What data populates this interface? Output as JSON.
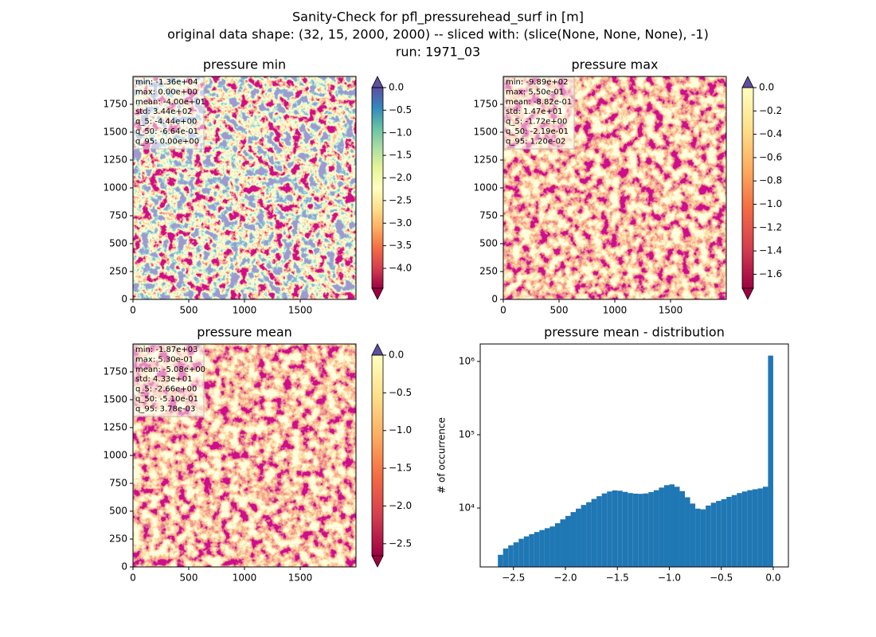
{
  "figure": {
    "title_lines": [
      "Sanity-Check for pfl_pressurehead_surf in [m]",
      "original data shape: (32, 15, 2000, 2000) -- sliced with: (slice(None, None, None), -1)",
      "run: 1971_03"
    ]
  },
  "chart_data": [
    {
      "type": "heatmap",
      "title": "pressure min",
      "xlim": [
        0,
        2000
      ],
      "ylim": [
        0,
        2000
      ],
      "xticks": [
        0,
        500,
        1000,
        1500
      ],
      "yticks": [
        0,
        250,
        500,
        750,
        1000,
        1250,
        1500,
        1750
      ],
      "stats": [
        "min: -1.36e+04",
        "max: 0.00e+00",
        "mean: -4.00e+01",
        "std: 3.44e+02",
        "q_5: -4.44e+00",
        "q_50: -6.64e-01",
        "q_95: 0.00e+00"
      ],
      "colorbar": {
        "ylim": [
          -4.44,
          0.0
        ],
        "extend": "both",
        "over_color": "#5e4fa2",
        "under_color": "#9e0142",
        "colors": [
          "#9e0142",
          "#d53e4f",
          "#f46d43",
          "#fdae61",
          "#fee08b",
          "#ffffbf",
          "#e6f598",
          "#abdda4",
          "#66c2a5",
          "#3288bd",
          "#5e4fa2"
        ],
        "yticks": [
          {
            "value": 0.0,
            "label": "0.0"
          },
          {
            "value": -0.5,
            "label": "−0.5"
          },
          {
            "value": -1.0,
            "label": "−1.0"
          },
          {
            "value": -1.5,
            "label": "−1.5"
          },
          {
            "value": -2.0,
            "label": "−2.0"
          },
          {
            "value": -2.5,
            "label": "−2.5"
          },
          {
            "value": -3.0,
            "label": "−3.0"
          },
          {
            "value": -3.5,
            "label": "−3.5"
          },
          {
            "value": -4.0,
            "label": "−4.0"
          }
        ]
      }
    },
    {
      "type": "heatmap",
      "title": "pressure max",
      "xlim": [
        0,
        2000
      ],
      "ylim": [
        0,
        2000
      ],
      "xticks": [
        0,
        500,
        1000,
        1500
      ],
      "yticks": [
        0,
        250,
        500,
        750,
        1000,
        1250,
        1500,
        1750
      ],
      "stats": [
        "min: -9.89e+02",
        "max: 5.50e-01",
        "mean: -8.82e-01",
        "std: 1.47e+01",
        "q_5: -1.72e+00",
        "q_50: -2.19e-01",
        "q_95: 1.20e-02"
      ],
      "colorbar": {
        "ylim": [
          -1.72,
          0.0
        ],
        "extend": "both",
        "over_color": "#5e4fa2",
        "under_color": "#9e0142",
        "colors": [
          "#9e0142",
          "#d53e4f",
          "#f46d43",
          "#fdae61",
          "#fee08b",
          "#ffffbf"
        ],
        "yticks": [
          {
            "value": 0.0,
            "label": "0.0"
          },
          {
            "value": -0.2,
            "label": "−0.2"
          },
          {
            "value": -0.4,
            "label": "−0.4"
          },
          {
            "value": -0.6,
            "label": "−0.6"
          },
          {
            "value": -0.8,
            "label": "−0.8"
          },
          {
            "value": -1.0,
            "label": "−1.0"
          },
          {
            "value": -1.2,
            "label": "−1.2"
          },
          {
            "value": -1.4,
            "label": "−1.4"
          },
          {
            "value": -1.6,
            "label": "−1.6"
          }
        ]
      }
    },
    {
      "type": "heatmap",
      "title": "pressure mean",
      "xlim": [
        0,
        2000
      ],
      "ylim": [
        0,
        2000
      ],
      "xticks": [
        0,
        500,
        1000,
        1500
      ],
      "yticks": [
        0,
        250,
        500,
        750,
        1000,
        1250,
        1500,
        1750
      ],
      "stats": [
        "min: -1.87e+03",
        "max: 5.30e-01",
        "mean: -5.08e+00",
        "std: 4.33e+01",
        "q_5: -2.66e+00",
        "q_50: -5.10e-01",
        "q_95: 3.78e-03"
      ],
      "colorbar": {
        "ylim": [
          -2.66,
          0.0
        ],
        "extend": "both",
        "over_color": "#5e4fa2",
        "under_color": "#9e0142",
        "colors": [
          "#9e0142",
          "#d53e4f",
          "#f46d43",
          "#fdae61",
          "#fee08b",
          "#ffffbf"
        ],
        "yticks": [
          {
            "value": 0.0,
            "label": "0.0"
          },
          {
            "value": -0.5,
            "label": "−0.5"
          },
          {
            "value": -1.0,
            "label": "−1.0"
          },
          {
            "value": -1.5,
            "label": "−1.5"
          },
          {
            "value": -2.0,
            "label": "−2.0"
          },
          {
            "value": -2.5,
            "label": "−2.5"
          }
        ]
      }
    },
    {
      "type": "histogram",
      "title": "pressure mean - distribution",
      "y_label": "# of occurrence",
      "color": "#1f77b4",
      "log_y": true,
      "xlim": [
        -2.82,
        0.146
      ],
      "ylim": [
        1570,
        1730000
      ],
      "xticks": [
        {
          "value": -2.5,
          "label": "−2.5"
        },
        {
          "value": -2.0,
          "label": "−2.0"
        },
        {
          "value": -1.5,
          "label": "−1.5"
        },
        {
          "value": -1.0,
          "label": "−1.0"
        },
        {
          "value": -0.5,
          "label": "−0.5"
        },
        {
          "value": 0.0,
          "label": "0.0"
        }
      ],
      "yticks": [
        {
          "value": 10000,
          "label": "10⁴"
        },
        {
          "value": 100000,
          "label": "10⁵"
        },
        {
          "value": 1000000,
          "label": "10⁶"
        }
      ],
      "bins": [
        -2.65,
        -2.6,
        -2.55,
        -2.5,
        -2.45,
        -2.4,
        -2.35,
        -2.3,
        -2.25,
        -2.2,
        -2.15,
        -2.1,
        -2.05,
        -2.0,
        -1.95,
        -1.9,
        -1.85,
        -1.8,
        -1.75,
        -1.7,
        -1.65,
        -1.6,
        -1.55,
        -1.5,
        -1.45,
        -1.4,
        -1.35,
        -1.3,
        -1.25,
        -1.2,
        -1.15,
        -1.1,
        -1.05,
        -1.0,
        -0.95,
        -0.9,
        -0.85,
        -0.8,
        -0.75,
        -0.7,
        -0.65,
        -0.6,
        -0.55,
        -0.5,
        -0.45,
        -0.4,
        -0.35,
        -0.3,
        -0.25,
        -0.2,
        -0.15,
        -0.1,
        -0.05,
        0.0
      ],
      "counts": [
        2300,
        2800,
        3100,
        3400,
        3800,
        4100,
        4400,
        4700,
        5000,
        5300,
        5600,
        6200,
        7000,
        7800,
        8800,
        9800,
        11000,
        12000,
        13300,
        14500,
        15800,
        16800,
        17400,
        17200,
        16600,
        16000,
        15700,
        15600,
        15800,
        16500,
        17500,
        19000,
        20500,
        21000,
        19500,
        17000,
        14000,
        11500,
        9800,
        9600,
        10800,
        11800,
        12500,
        13200,
        14200,
        15000,
        16000,
        16800,
        17500,
        18000,
        18500,
        19500,
        1200000
      ]
    }
  ]
}
